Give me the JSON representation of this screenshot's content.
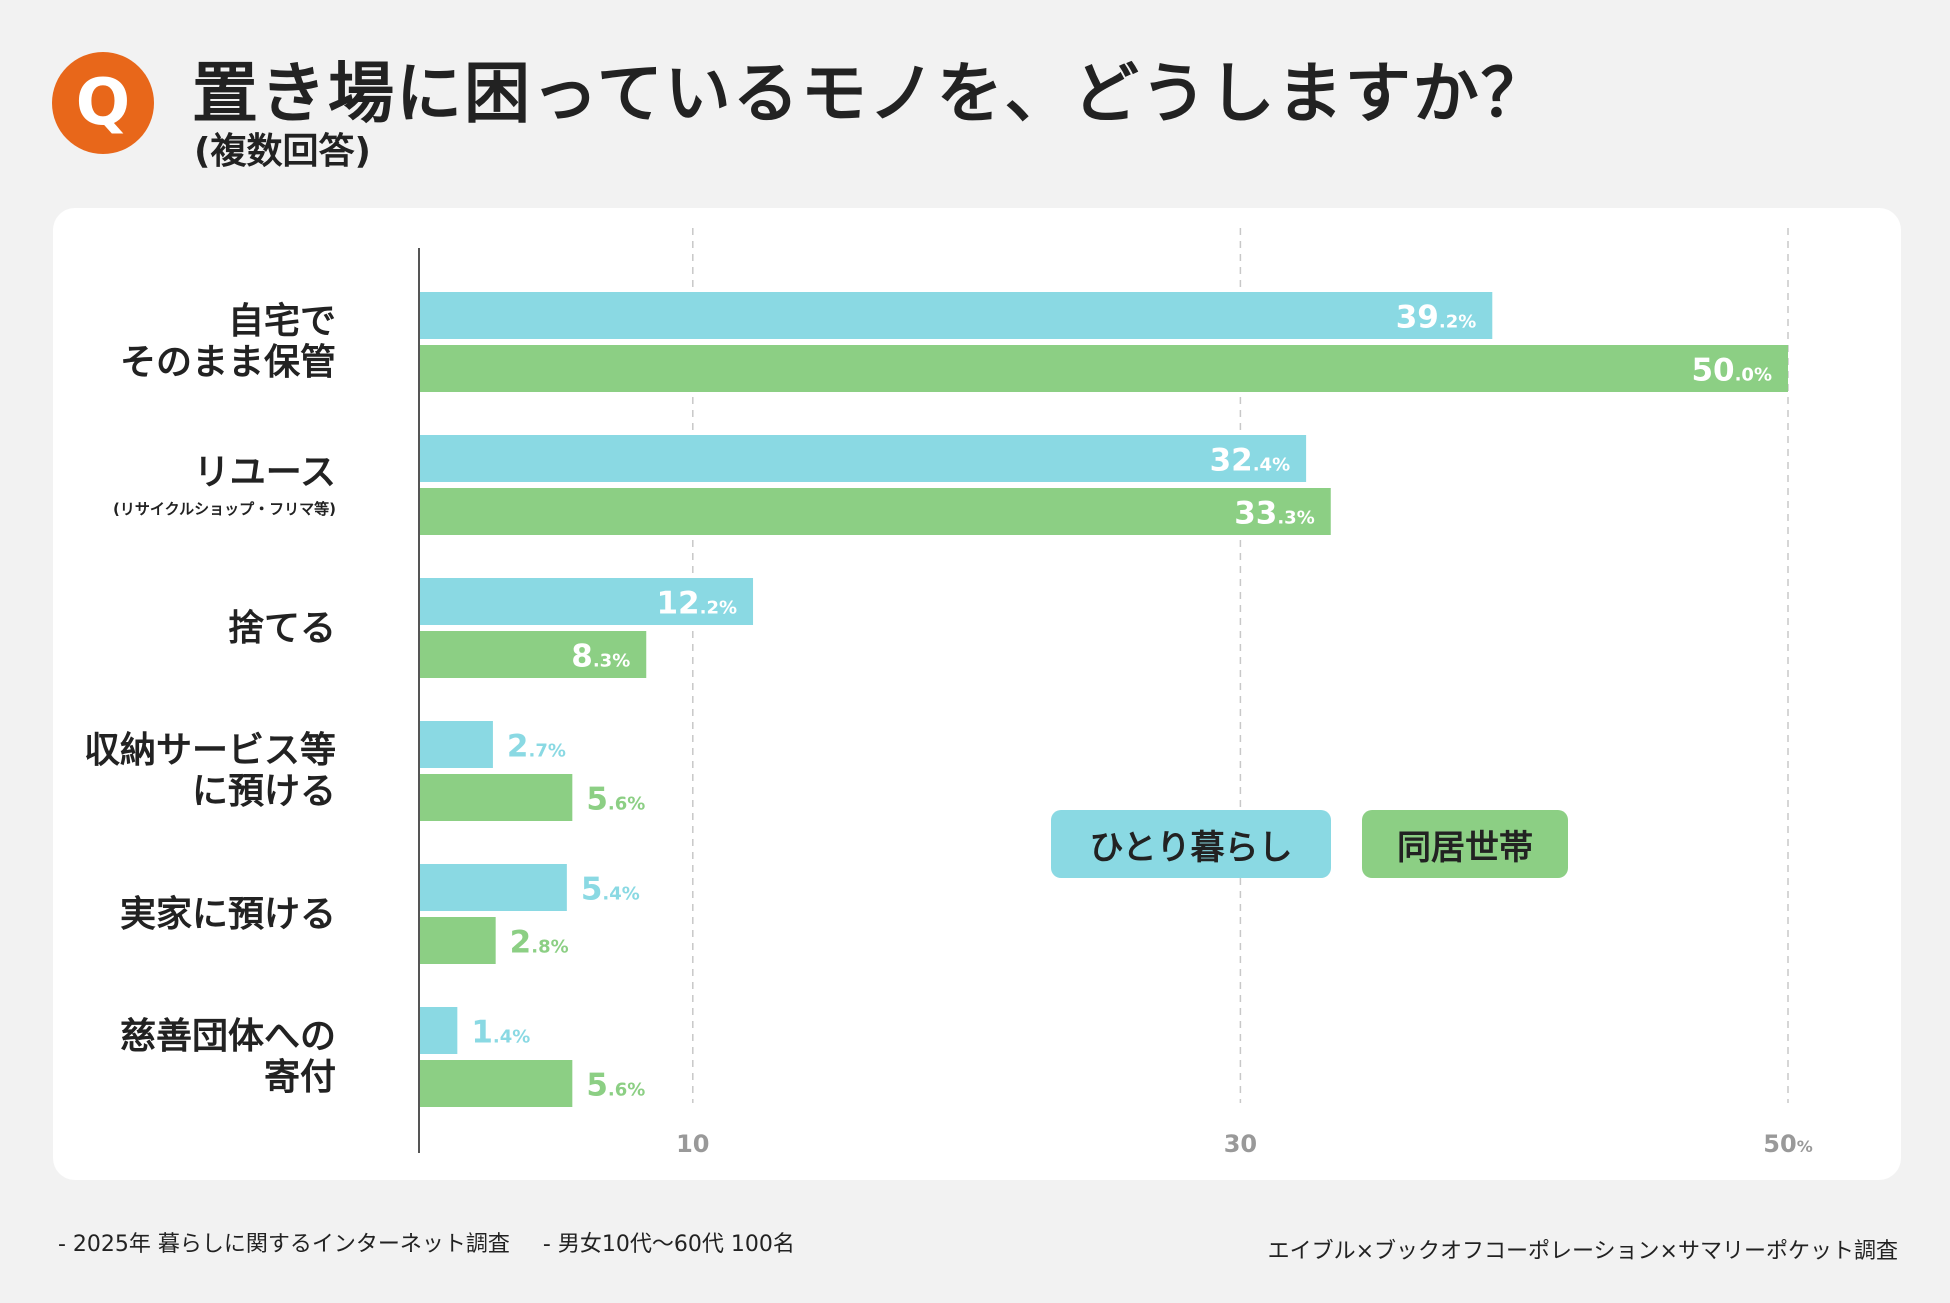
{
  "header": {
    "badge": "Q",
    "title": "置き場に困っているモノを、どうしますか？",
    "subtitle": "(複数回答)"
  },
  "colors": {
    "single": "#8ad9e3",
    "cohabit": "#8ccf84",
    "accent": "#e8671a"
  },
  "legend": {
    "single": "ひとり暮らし",
    "cohabit": "同居世帯"
  },
  "chart_data": {
    "type": "bar",
    "orientation": "horizontal",
    "title": "置き場に困っているモノを、どうしますか？",
    "unit": "%",
    "categories": [
      {
        "lines": [
          "自宅で",
          "そのまま保管"
        ],
        "sub": ""
      },
      {
        "lines": [
          "リユース"
        ],
        "sub": "(リサイクルショップ・フリマ等)"
      },
      {
        "lines": [
          "捨てる"
        ],
        "sub": ""
      },
      {
        "lines": [
          "収納サービス等",
          "に預ける"
        ],
        "sub": ""
      },
      {
        "lines": [
          "実家に預ける"
        ],
        "sub": ""
      },
      {
        "lines": [
          "慈善団体への",
          "寄付"
        ],
        "sub": ""
      }
    ],
    "series": [
      {
        "name": "ひとり暮らし",
        "key": "single",
        "values": [
          39.2,
          32.4,
          12.2,
          2.7,
          5.4,
          1.4
        ],
        "labels": [
          {
            "int": "39",
            "dec": ".2%"
          },
          {
            "int": "32",
            "dec": ".4%"
          },
          {
            "int": "12",
            "dec": ".2%"
          },
          {
            "int": "2",
            "dec": ".7%"
          },
          {
            "int": "5",
            "dec": ".4%"
          },
          {
            "int": "1",
            "dec": ".4%"
          }
        ]
      },
      {
        "name": "同居世帯",
        "key": "cohabit",
        "values": [
          50.0,
          33.3,
          8.3,
          5.6,
          2.8,
          5.6
        ],
        "labels": [
          {
            "int": "50",
            "dec": ".0%"
          },
          {
            "int": "33",
            "dec": ".3%"
          },
          {
            "int": "8",
            "dec": ".3%"
          },
          {
            "int": "5",
            "dec": ".6%"
          },
          {
            "int": "2",
            "dec": ".8%"
          },
          {
            "int": "5",
            "dec": ".6%"
          }
        ]
      }
    ],
    "xlim": [
      0,
      50
    ],
    "gridlines": [
      10,
      30,
      50
    ],
    "ticks": [
      {
        "value": 10,
        "text": "10",
        "suffix": ""
      },
      {
        "value": 30,
        "text": "30",
        "suffix": ""
      },
      {
        "value": 50,
        "text": "50",
        "suffix": "%"
      }
    ]
  },
  "footer": {
    "notes": [
      "- 2025年 暮らしに関するインターネット調査",
      "- 男女10代〜60代 100名"
    ],
    "credit": "エイブル×ブックオフコーポレーション×サマリーポケット調査"
  }
}
